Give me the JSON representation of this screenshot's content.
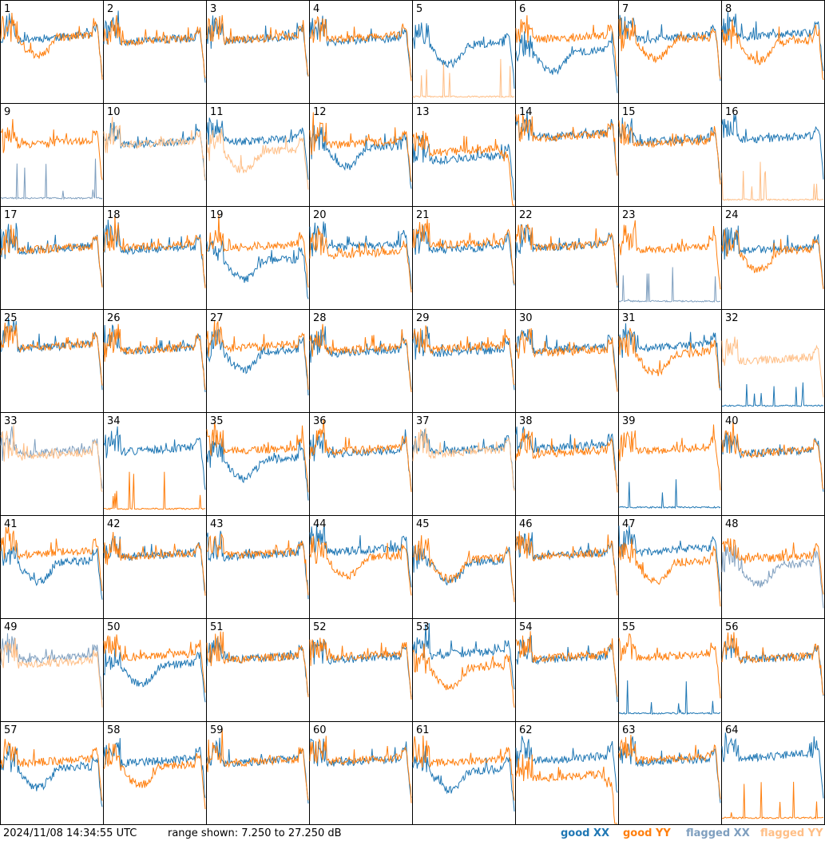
{
  "timestamp": "2024/11/08 14:34:55 UTC",
  "range_text": "range shown: 7.250 to 27.250 dB",
  "legend": {
    "good_xx": {
      "label": "good XX",
      "color": "#1f77b4"
    },
    "good_yy": {
      "label": "good YY",
      "color": "#ff7f0e"
    },
    "flagged_xx": {
      "label": "flagged XX",
      "color": "#7f9fbf"
    },
    "flagged_yy": {
      "label": "flagged YY",
      "color": "#ffbf87"
    }
  },
  "chart_data": {
    "type": "line",
    "layout": "8x8 small multiples",
    "range_db": [
      7.25,
      27.25
    ],
    "panel_labels": [
      "1",
      "2",
      "3",
      "4",
      "5",
      "6",
      "7",
      "8",
      "9",
      "10",
      "11",
      "12",
      "13",
      "14",
      "15",
      "16",
      "17",
      "18",
      "19",
      "20",
      "21",
      "22",
      "23",
      "24",
      "25",
      "26",
      "27",
      "28",
      "29",
      "30",
      "31",
      "32",
      "33",
      "34",
      "35",
      "36",
      "37",
      "38",
      "39",
      "40",
      "41",
      "42",
      "43",
      "44",
      "45",
      "46",
      "47",
      "48",
      "49",
      "50",
      "51",
      "52",
      "53",
      "54",
      "55",
      "56",
      "57",
      "58",
      "59",
      "60",
      "61",
      "62",
      "63",
      "64"
    ],
    "panels": [
      {
        "xx": "good",
        "yy": "good",
        "xx_level": 20.0,
        "yy_level": 20.0,
        "xx_shape": "normal",
        "yy_shape": "dip"
      },
      {
        "xx": "good",
        "yy": "good",
        "xx_level": 19.5,
        "yy_level": 19.5,
        "xx_shape": "normal",
        "yy_shape": "normal"
      },
      {
        "xx": "good",
        "yy": "good",
        "xx_level": 19.8,
        "yy_level": 19.8,
        "xx_shape": "normal",
        "yy_shape": "normal"
      },
      {
        "xx": "good",
        "yy": "good",
        "xx_level": 19.5,
        "yy_level": 20.0,
        "xx_shape": "normal",
        "yy_shape": "normal"
      },
      {
        "xx": "good",
        "yy": "flagged",
        "xx_level": 18.5,
        "yy_level": 8.2,
        "xx_shape": "dip",
        "yy_shape": "flat_low"
      },
      {
        "xx": "good",
        "yy": "good",
        "xx_level": 17.0,
        "yy_level": 20.0,
        "xx_shape": "dip",
        "yy_shape": "normal"
      },
      {
        "xx": "good",
        "yy": "good",
        "xx_level": 20.0,
        "yy_level": 19.5,
        "xx_shape": "normal",
        "yy_shape": "dip"
      },
      {
        "xx": "good",
        "yy": "good",
        "xx_level": 20.5,
        "yy_level": 19.0,
        "xx_shape": "normal",
        "yy_shape": "dip"
      },
      {
        "xx": "flagged",
        "yy": "good",
        "xx_level": 8.5,
        "yy_level": 19.5,
        "xx_shape": "flat_low",
        "yy_shape": "normal"
      },
      {
        "xx": "good",
        "yy": "flagged",
        "xx_level": 19.5,
        "yy_level": 19.5,
        "xx_shape": "normal",
        "yy_shape": "normal"
      },
      {
        "xx": "good",
        "yy": "flagged",
        "xx_level": 20.0,
        "yy_level": 17.8,
        "xx_shape": "normal",
        "yy_shape": "dip"
      },
      {
        "xx": "good",
        "yy": "good",
        "xx_level": 18.5,
        "yy_level": 19.5,
        "xx_shape": "dip",
        "yy_shape": "normal"
      },
      {
        "xx": "good",
        "yy": "good",
        "xx_level": 16.5,
        "yy_level": 18.0,
        "xx_shape": "normal",
        "yy_shape": "drop"
      },
      {
        "xx": "good",
        "yy": "good",
        "xx_level": 21.0,
        "yy_level": 20.8,
        "xx_shape": "normal",
        "yy_shape": "normal"
      },
      {
        "xx": "good",
        "yy": "good",
        "xx_level": 20.0,
        "yy_level": 19.5,
        "xx_shape": "normal",
        "yy_shape": "normal"
      },
      {
        "xx": "good",
        "yy": "flagged",
        "xx_level": 20.5,
        "yy_level": 8.2,
        "xx_shape": "normal",
        "yy_shape": "flat_low"
      },
      {
        "xx": "good",
        "yy": "good",
        "xx_level": 19.0,
        "yy_level": 19.0,
        "xx_shape": "normal",
        "yy_shape": "normal"
      },
      {
        "xx": "good",
        "yy": "good",
        "xx_level": 19.0,
        "yy_level": 19.5,
        "xx_shape": "normal",
        "yy_shape": "normal"
      },
      {
        "xx": "good",
        "yy": "good",
        "xx_level": 16.5,
        "yy_level": 19.5,
        "xx_shape": "dip",
        "yy_shape": "normal"
      },
      {
        "xx": "good",
        "yy": "good",
        "xx_level": 19.5,
        "yy_level": 18.0,
        "xx_shape": "normal",
        "yy_shape": "normal"
      },
      {
        "xx": "good",
        "yy": "good",
        "xx_level": 19.0,
        "yy_level": 20.0,
        "xx_shape": "normal",
        "yy_shape": "normal"
      },
      {
        "xx": "good",
        "yy": "good",
        "xx_level": 19.5,
        "yy_level": 19.5,
        "xx_shape": "normal",
        "yy_shape": "normal"
      },
      {
        "xx": "flagged",
        "yy": "good",
        "xx_level": 8.5,
        "yy_level": 19.0,
        "xx_shape": "flat_low",
        "yy_shape": "normal"
      },
      {
        "xx": "good",
        "yy": "good",
        "xx_level": 19.0,
        "yy_level": 18.5,
        "xx_shape": "normal",
        "yy_shape": "dip"
      },
      {
        "xx": "good",
        "yy": "good",
        "xx_level": 20.0,
        "yy_level": 20.0,
        "xx_shape": "normal",
        "yy_shape": "normal"
      },
      {
        "xx": "good",
        "yy": "good",
        "xx_level": 19.5,
        "yy_level": 19.5,
        "xx_shape": "normal",
        "yy_shape": "normal"
      },
      {
        "xx": "good",
        "yy": "good",
        "xx_level": 19.0,
        "yy_level": 20.0,
        "xx_shape": "dip",
        "yy_shape": "normal"
      },
      {
        "xx": "good",
        "yy": "good",
        "xx_level": 19.0,
        "yy_level": 19.5,
        "xx_shape": "normal",
        "yy_shape": "normal"
      },
      {
        "xx": "good",
        "yy": "good",
        "xx_level": 19.0,
        "yy_level": 19.8,
        "xx_shape": "normal",
        "yy_shape": "normal"
      },
      {
        "xx": "good",
        "yy": "good",
        "xx_level": 19.5,
        "yy_level": 19.0,
        "xx_shape": "normal",
        "yy_shape": "normal"
      },
      {
        "xx": "good",
        "yy": "good",
        "xx_level": 20.0,
        "yy_level": 18.5,
        "xx_shape": "normal",
        "yy_shape": "dip"
      },
      {
        "xx": "good",
        "yy": "flagged",
        "xx_level": 8.2,
        "yy_level": 17.5,
        "xx_shape": "flat_low",
        "yy_shape": "normal"
      },
      {
        "xx": "flagged",
        "yy": "flagged",
        "xx_level": 19.5,
        "yy_level": 19.0,
        "xx_shape": "normal",
        "yy_shape": "normal"
      },
      {
        "xx": "good",
        "yy": "good",
        "xx_level": 20.0,
        "yy_level": 8.2,
        "xx_shape": "normal",
        "yy_shape": "flat_low"
      },
      {
        "xx": "good",
        "yy": "good",
        "xx_level": 18.0,
        "yy_level": 20.0,
        "xx_shape": "dip",
        "yy_shape": "normal"
      },
      {
        "xx": "good",
        "yy": "good",
        "xx_level": 19.5,
        "yy_level": 20.0,
        "xx_shape": "normal",
        "yy_shape": "normal"
      },
      {
        "xx": "good",
        "yy": "flagged",
        "xx_level": 20.0,
        "yy_level": 19.5,
        "xx_shape": "normal",
        "yy_shape": "normal"
      },
      {
        "xx": "good",
        "yy": "good",
        "xx_level": 20.5,
        "yy_level": 19.5,
        "xx_shape": "normal",
        "yy_shape": "normal"
      },
      {
        "xx": "good",
        "yy": "good",
        "xx_level": 8.5,
        "yy_level": 20.0,
        "xx_shape": "flat_low",
        "yy_shape": "normal"
      },
      {
        "xx": "good",
        "yy": "good",
        "xx_level": 19.5,
        "yy_level": 19.5,
        "xx_shape": "normal",
        "yy_shape": "normal"
      },
      {
        "xx": "good",
        "yy": "good",
        "xx_level": 18.0,
        "yy_level": 20.0,
        "xx_shape": "dip",
        "yy_shape": "normal"
      },
      {
        "xx": "good",
        "yy": "good",
        "xx_level": 19.5,
        "yy_level": 19.5,
        "xx_shape": "normal",
        "yy_shape": "normal"
      },
      {
        "xx": "good",
        "yy": "good",
        "xx_level": 19.5,
        "yy_level": 19.8,
        "xx_shape": "normal",
        "yy_shape": "normal"
      },
      {
        "xx": "good",
        "yy": "good",
        "xx_level": 20.5,
        "yy_level": 19.0,
        "xx_shape": "normal",
        "yy_shape": "dip"
      },
      {
        "xx": "good",
        "yy": "good",
        "xx_level": 18.0,
        "yy_level": 18.5,
        "xx_shape": "dip",
        "yy_shape": "dip"
      },
      {
        "xx": "good",
        "yy": "good",
        "xx_level": 19.5,
        "yy_level": 19.5,
        "xx_shape": "normal",
        "yy_shape": "normal"
      },
      {
        "xx": "good",
        "yy": "good",
        "xx_level": 20.5,
        "yy_level": 18.0,
        "xx_shape": "normal",
        "yy_shape": "dip"
      },
      {
        "xx": "flagged",
        "yy": "good",
        "xx_level": 17.5,
        "yy_level": 19.0,
        "xx_shape": "dip",
        "yy_shape": "normal"
      },
      {
        "xx": "flagged",
        "yy": "flagged",
        "xx_level": 19.5,
        "yy_level": 18.5,
        "xx_shape": "normal",
        "yy_shape": "normal"
      },
      {
        "xx": "good",
        "yy": "good",
        "xx_level": 18.0,
        "yy_level": 20.0,
        "xx_shape": "dip",
        "yy_shape": "normal"
      },
      {
        "xx": "good",
        "yy": "good",
        "xx_level": 19.5,
        "yy_level": 19.5,
        "xx_shape": "normal",
        "yy_shape": "normal"
      },
      {
        "xx": "good",
        "yy": "good",
        "xx_level": 19.5,
        "yy_level": 20.0,
        "xx_shape": "normal",
        "yy_shape": "normal"
      },
      {
        "xx": "good",
        "yy": "good",
        "xx_level": 20.5,
        "yy_level": 17.5,
        "xx_shape": "normal",
        "yy_shape": "dip"
      },
      {
        "xx": "good",
        "yy": "good",
        "xx_level": 19.5,
        "yy_level": 19.8,
        "xx_shape": "normal",
        "yy_shape": "normal"
      },
      {
        "xx": "good",
        "yy": "good",
        "xx_level": 8.5,
        "yy_level": 20.0,
        "xx_shape": "flat_low",
        "yy_shape": "normal"
      },
      {
        "xx": "good",
        "yy": "good",
        "xx_level": 19.5,
        "yy_level": 19.5,
        "xx_shape": "normal",
        "yy_shape": "normal"
      },
      {
        "xx": "good",
        "yy": "good",
        "xx_level": 18.0,
        "yy_level": 19.5,
        "xx_shape": "dip",
        "yy_shape": "normal"
      },
      {
        "xx": "good",
        "yy": "good",
        "xx_level": 19.5,
        "yy_level": 18.5,
        "xx_shape": "normal",
        "yy_shape": "dip"
      },
      {
        "xx": "good",
        "yy": "good",
        "xx_level": 19.5,
        "yy_level": 19.5,
        "xx_shape": "normal",
        "yy_shape": "normal"
      },
      {
        "xx": "good",
        "yy": "good",
        "xx_level": 19.5,
        "yy_level": 19.8,
        "xx_shape": "normal",
        "yy_shape": "normal"
      },
      {
        "xx": "good",
        "yy": "good",
        "xx_level": 17.5,
        "yy_level": 19.5,
        "xx_shape": "dip",
        "yy_shape": "normal"
      },
      {
        "xx": "good",
        "yy": "good",
        "xx_level": 20.0,
        "yy_level": 16.5,
        "xx_shape": "normal",
        "yy_shape": "drop"
      },
      {
        "xx": "good",
        "yy": "good",
        "xx_level": 19.5,
        "yy_level": 20.0,
        "xx_shape": "normal",
        "yy_shape": "normal"
      },
      {
        "xx": "good",
        "yy": "good",
        "xx_level": 20.5,
        "yy_level": 8.2,
        "xx_shape": "normal",
        "yy_shape": "flat_low"
      }
    ]
  }
}
